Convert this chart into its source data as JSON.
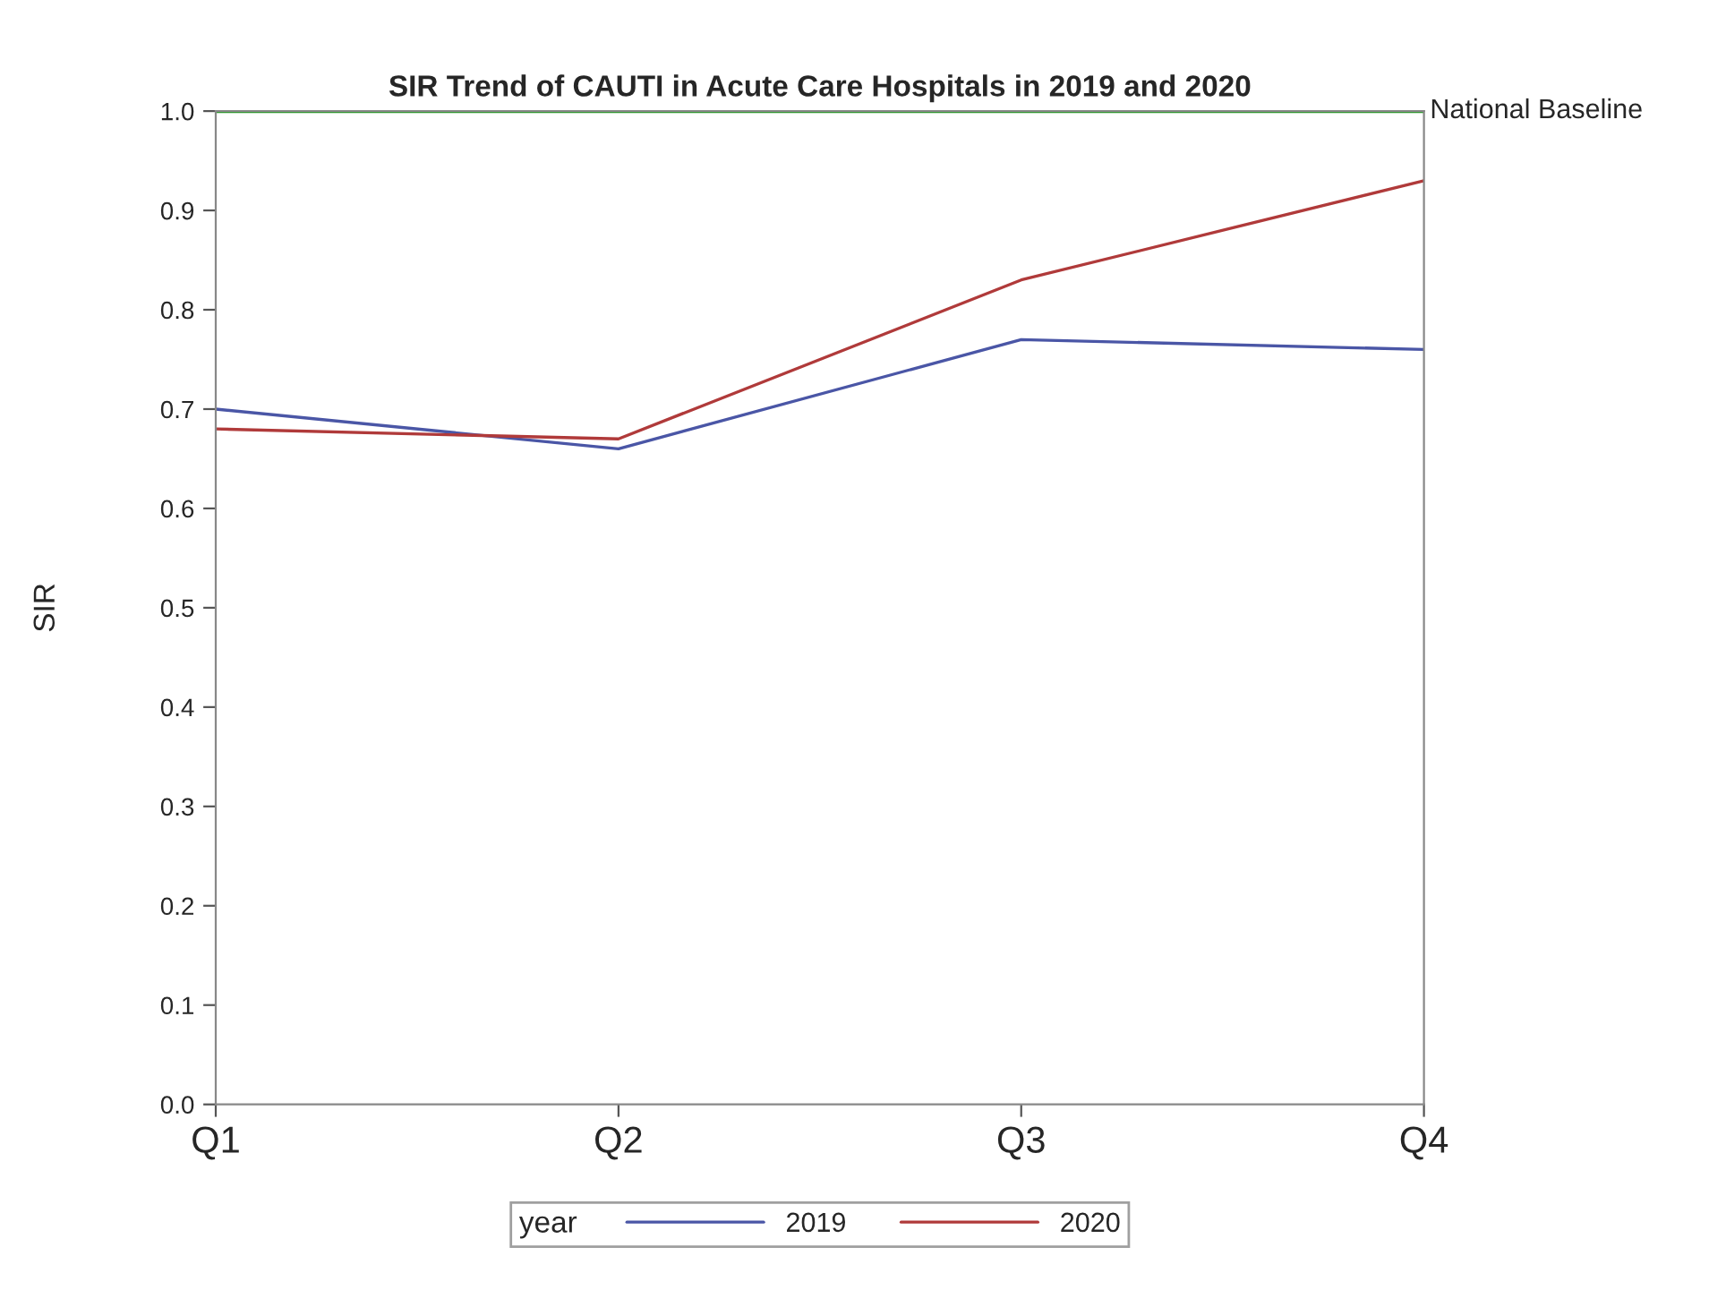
{
  "chart_data": {
    "type": "line",
    "title": "SIR Trend of CAUTI in Acute Care Hospitals in 2019 and 2020",
    "ylabel": "SIR",
    "legend_title": "year",
    "categories": [
      "Q1",
      "Q2",
      "Q3",
      "Q4"
    ],
    "series": [
      {
        "name": "2019",
        "color": "#4a56a6",
        "values": [
          0.7,
          0.66,
          0.77,
          0.76
        ]
      },
      {
        "name": "2020",
        "color": "#b03a3a",
        "values": [
          0.68,
          0.67,
          0.83,
          0.93
        ]
      }
    ],
    "ylim": [
      0,
      1.0
    ],
    "yticks": [
      {
        "value": 0,
        "label": "0.0"
      },
      0.1,
      0.2,
      0.3,
      0.4,
      0.5,
      0.6,
      0.7,
      0.8,
      0.9,
      {
        "value": 1.0,
        "label": "1.0"
      }
    ],
    "ref_lines": [
      {
        "axis": "y",
        "value": 1.0,
        "label": "National Baseline",
        "color": "#1a9a1a"
      }
    ],
    "grid": false,
    "legend": "bottom"
  }
}
